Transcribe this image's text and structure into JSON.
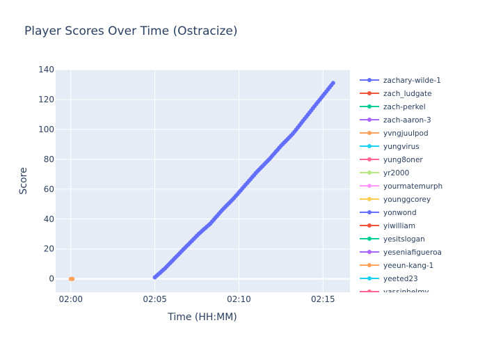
{
  "chart_data": {
    "type": "line",
    "title": "Player Scores Over Time (Ostracize)",
    "xlabel": "Time (HH:MM)",
    "ylabel": "Score",
    "x_ticks": [
      "02:00",
      "02:05",
      "02:10",
      "02:15"
    ],
    "x_range_minutes": [
      -0.9,
      16.6
    ],
    "ylim": [
      -9,
      140
    ],
    "y_ticks": [
      0,
      20,
      40,
      60,
      80,
      100,
      120,
      140
    ],
    "grid": true,
    "legend_position": "right",
    "legend": [
      {
        "name": "zachary-wilde-1",
        "color": "#636efa"
      },
      {
        "name": "zach_ludgate",
        "color": "#ef553b"
      },
      {
        "name": "zach-perkel",
        "color": "#00cc96"
      },
      {
        "name": "zach-aaron-3",
        "color": "#ab63fa"
      },
      {
        "name": "yvngjuulpod",
        "color": "#ffa15a"
      },
      {
        "name": "yungvirus",
        "color": "#19d3f3"
      },
      {
        "name": "yung8oner",
        "color": "#ff6692"
      },
      {
        "name": "yr2000",
        "color": "#b6e880"
      },
      {
        "name": "yourmatemurph",
        "color": "#ff97ff"
      },
      {
        "name": "younggcorey",
        "color": "#fecb52"
      },
      {
        "name": "yonwond",
        "color": "#636efa"
      },
      {
        "name": "yiwilliam",
        "color": "#ef553b"
      },
      {
        "name": "yesitslogan",
        "color": "#00cc96"
      },
      {
        "name": "yeseniafigueroa",
        "color": "#ab63fa"
      },
      {
        "name": "yeeun-kang-1",
        "color": "#ffa15a"
      },
      {
        "name": "yeeted23",
        "color": "#19d3f3"
      },
      {
        "name": "yassinhelmy",
        "color": "#ff6692"
      }
    ],
    "series": [
      {
        "name": "zachary-wilde-1",
        "color": "#636efa",
        "x_minutes": [
          5.0,
          5.6,
          6.2,
          6.9,
          7.6,
          8.3,
          9.0,
          9.7,
          10.4,
          11.1,
          11.8,
          12.5,
          13.2,
          13.9,
          14.6,
          15.6
        ],
        "values": [
          1,
          7,
          14,
          22,
          30,
          37,
          46,
          54,
          63,
          72,
          80,
          89,
          97,
          107,
          117,
          131
        ]
      },
      {
        "name": "yvngjuulpod",
        "color": "#ffa15a",
        "x_minutes": [
          0.0,
          0.05,
          0.1
        ],
        "values": [
          0,
          0,
          0
        ]
      }
    ]
  }
}
